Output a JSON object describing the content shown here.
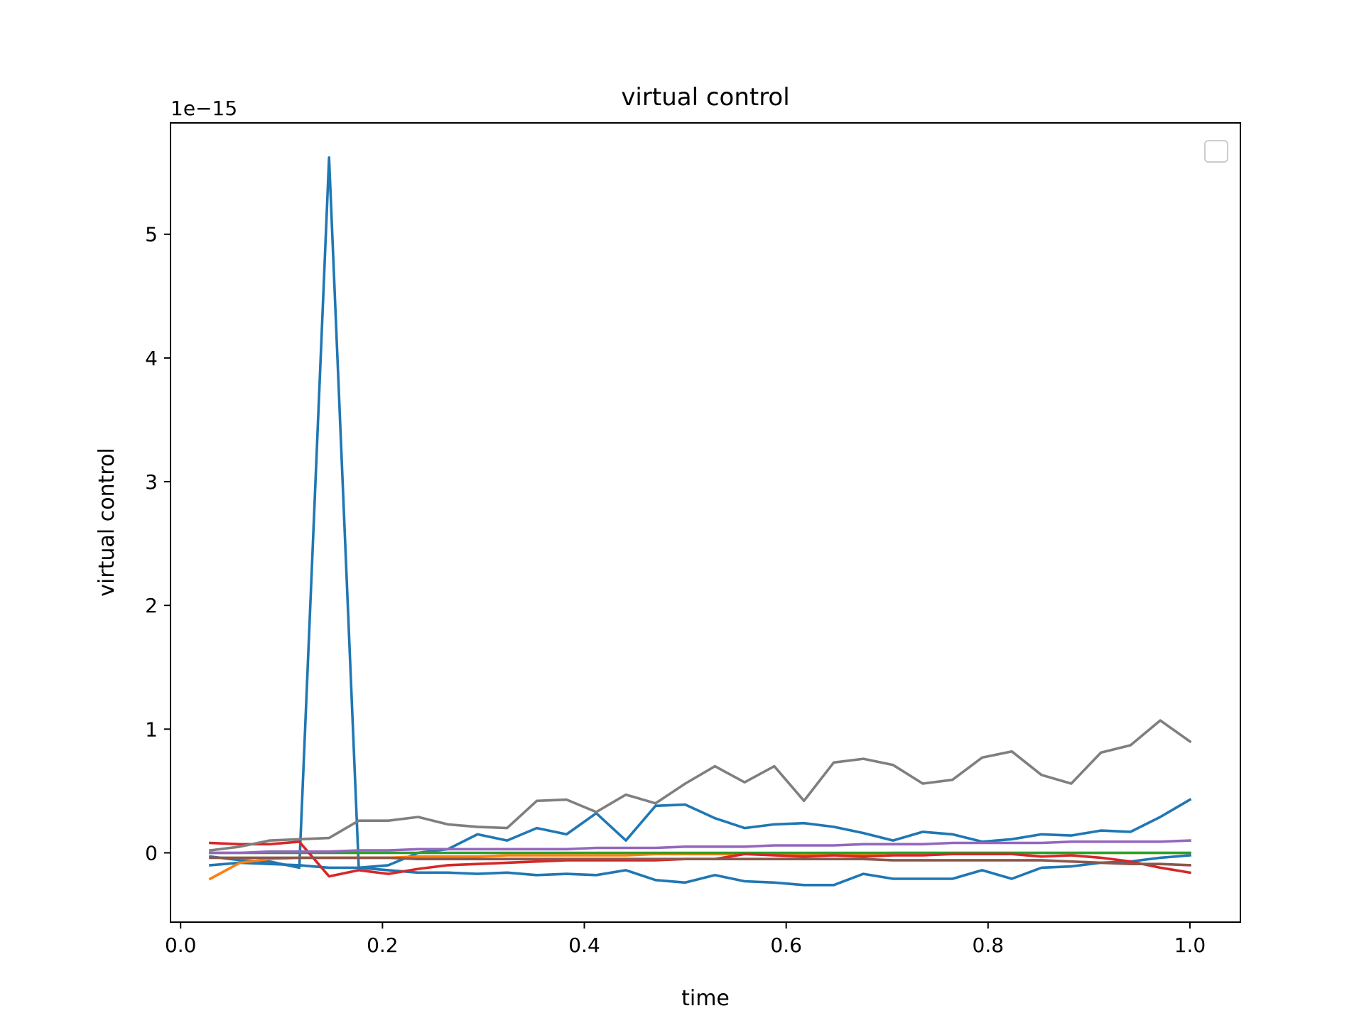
{
  "chart_data": {
    "type": "line",
    "title": "virtual control",
    "xlabel": "time",
    "ylabel": "virtual control",
    "y_offset_label": "1e−15",
    "y_scale_factor": 1e-15,
    "xlim": [
      -0.01,
      1.05
    ],
    "ylim": [
      -0.56,
      5.9
    ],
    "x_ticks": [
      0.0,
      0.2,
      0.4,
      0.6,
      0.8,
      1.0
    ],
    "x_tick_labels": [
      "0.0",
      "0.2",
      "0.4",
      "0.6",
      "0.8",
      "1.0"
    ],
    "y_ticks": [
      0,
      1,
      2,
      3,
      4,
      5
    ],
    "y_tick_labels": [
      "0",
      "1",
      "2",
      "3",
      "4",
      "5"
    ],
    "grid": false,
    "legend": {
      "placement": "top-right",
      "entries": []
    },
    "x": [
      0.0294,
      0.0588,
      0.0882,
      0.1176,
      0.1471,
      0.1765,
      0.2059,
      0.2353,
      0.2647,
      0.2941,
      0.3235,
      0.3529,
      0.3824,
      0.4118,
      0.4412,
      0.4706,
      0.5,
      0.5294,
      0.5588,
      0.5882,
      0.6176,
      0.6471,
      0.6765,
      0.7059,
      0.7353,
      0.7647,
      0.7941,
      0.8235,
      0.8529,
      0.8824,
      0.9118,
      0.9412,
      0.9706,
      1.0
    ],
    "series": [
      {
        "color": "#1f77b4",
        "values": [
          -0.03,
          -0.06,
          -0.07,
          -0.12,
          5.62,
          -0.12,
          -0.1,
          0.0,
          0.03,
          0.15,
          0.1,
          0.2,
          0.15,
          0.32,
          0.1,
          0.38,
          0.39,
          0.28,
          0.2,
          0.23,
          0.24,
          0.21,
          0.16,
          0.1,
          0.17,
          0.15,
          0.09,
          0.11,
          0.15,
          0.14,
          0.18,
          0.17,
          0.29,
          0.43
        ]
      },
      {
        "color": "#1f77b4",
        "values": [
          -0.1,
          -0.08,
          -0.09,
          -0.1,
          -0.12,
          -0.12,
          -0.14,
          -0.16,
          -0.16,
          -0.17,
          -0.16,
          -0.18,
          -0.17,
          -0.18,
          -0.14,
          -0.22,
          -0.24,
          -0.18,
          -0.23,
          -0.24,
          -0.26,
          -0.26,
          -0.17,
          -0.21,
          -0.21,
          -0.21,
          -0.14,
          -0.21,
          -0.12,
          -0.11,
          -0.08,
          -0.07,
          -0.04,
          -0.02
        ]
      },
      {
        "color": "#ff7f0e",
        "values": [
          -0.21,
          -0.08,
          -0.05,
          -0.04,
          -0.04,
          -0.04,
          -0.04,
          -0.03,
          -0.03,
          -0.03,
          -0.02,
          -0.02,
          -0.02,
          -0.02,
          -0.02,
          -0.01,
          -0.01,
          -0.01,
          -0.01,
          -0.01,
          -0.01,
          -0.01,
          -0.01,
          0.0,
          0.0,
          0.0,
          0.0,
          0.0,
          0.0,
          0.0,
          0.0,
          0.0,
          0.0,
          0.0
        ]
      },
      {
        "color": "#2ca02c",
        "values": [
          0.0,
          0.0,
          0.0,
          0.0,
          0.0,
          0.0,
          0.0,
          0.0,
          0.0,
          0.0,
          0.0,
          0.0,
          0.0,
          0.0,
          0.0,
          0.0,
          0.0,
          0.0,
          0.0,
          0.0,
          0.0,
          0.0,
          0.0,
          0.0,
          0.0,
          0.0,
          0.0,
          0.0,
          0.0,
          0.0,
          0.0,
          0.0,
          0.0,
          0.0
        ]
      },
      {
        "color": "#d62728",
        "values": [
          0.08,
          0.07,
          0.07,
          0.09,
          -0.19,
          -0.14,
          -0.17,
          -0.13,
          -0.1,
          -0.09,
          -0.08,
          -0.07,
          -0.06,
          -0.06,
          -0.06,
          -0.06,
          -0.05,
          -0.05,
          -0.01,
          -0.02,
          -0.03,
          -0.02,
          -0.03,
          -0.02,
          -0.02,
          -0.01,
          -0.01,
          -0.01,
          -0.03,
          -0.02,
          -0.04,
          -0.07,
          -0.12,
          -0.16
        ]
      },
      {
        "color": "#9467bd",
        "values": [
          0.0,
          0.0,
          0.01,
          0.01,
          0.01,
          0.02,
          0.02,
          0.03,
          0.03,
          0.03,
          0.03,
          0.03,
          0.03,
          0.04,
          0.04,
          0.04,
          0.05,
          0.05,
          0.05,
          0.06,
          0.06,
          0.06,
          0.07,
          0.07,
          0.07,
          0.08,
          0.08,
          0.08,
          0.08,
          0.09,
          0.09,
          0.09,
          0.09,
          0.1
        ]
      },
      {
        "color": "#8c564b",
        "values": [
          -0.04,
          -0.04,
          -0.04,
          -0.04,
          -0.04,
          -0.04,
          -0.04,
          -0.05,
          -0.05,
          -0.05,
          -0.05,
          -0.05,
          -0.05,
          -0.05,
          -0.05,
          -0.05,
          -0.05,
          -0.05,
          -0.05,
          -0.05,
          -0.05,
          -0.05,
          -0.05,
          -0.06,
          -0.06,
          -0.06,
          -0.06,
          -0.06,
          -0.06,
          -0.07,
          -0.08,
          -0.09,
          -0.09,
          -0.1
        ]
      },
      {
        "color": "#7f7f7f",
        "values": [
          0.02,
          0.05,
          0.1,
          0.11,
          0.12,
          0.26,
          0.26,
          0.29,
          0.23,
          0.21,
          0.2,
          0.42,
          0.43,
          0.33,
          0.47,
          0.4,
          0.56,
          0.7,
          0.57,
          0.7,
          0.42,
          0.73,
          0.76,
          0.71,
          0.56,
          0.59,
          0.77,
          0.82,
          0.63,
          0.56,
          0.81,
          0.87,
          1.07,
          0.9
        ]
      }
    ]
  }
}
